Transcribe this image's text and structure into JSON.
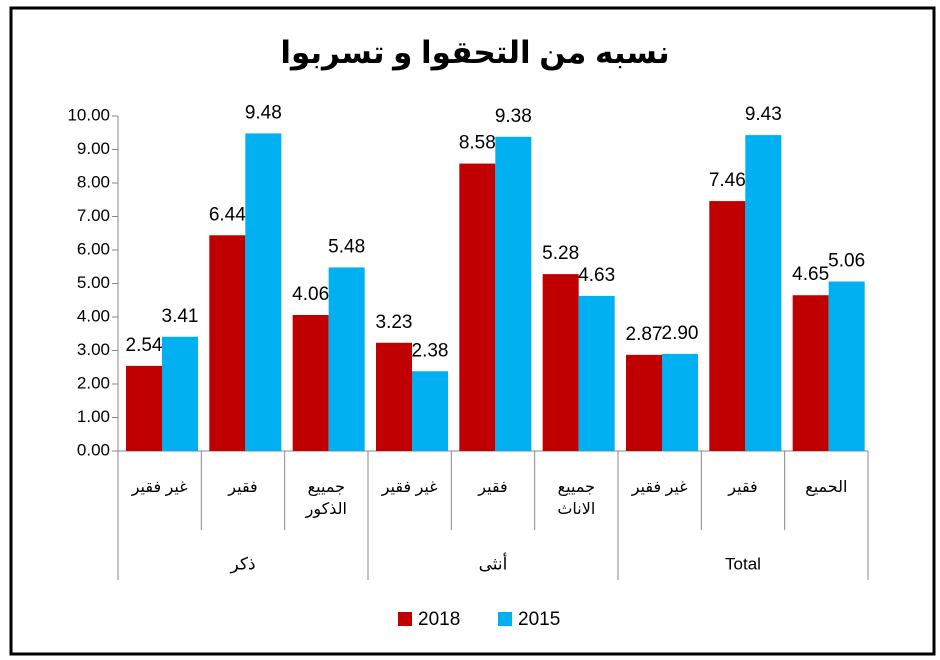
{
  "chart_data": {
    "type": "bar",
    "title": "نسبه من التحقوا و تسربوا",
    "categories": [
      "غير فقير",
      "فقير",
      "جمييع الذكور",
      "غير فقير",
      "فقير",
      "جمييع الاناث",
      "غير فقير",
      "فقير",
      "الحميع"
    ],
    "groups": [
      "ذكر",
      "أنثى",
      "Total"
    ],
    "series": [
      {
        "name": "2018",
        "color": "#c00000",
        "values": [
          2.54,
          6.44,
          4.06,
          3.23,
          8.58,
          5.28,
          2.87,
          7.46,
          4.65
        ],
        "value_labels": [
          "2.54",
          "6.44",
          "4.06",
          "3.23",
          "8.58",
          "5.28",
          "2.87",
          "7.46",
          "4.65"
        ]
      },
      {
        "name": "2015",
        "color": "#00b0f0",
        "values": [
          3.41,
          9.48,
          5.48,
          2.38,
          9.38,
          4.63,
          2.9,
          9.43,
          5.06
        ],
        "value_labels": [
          "3.41",
          "9.48",
          "5.48",
          "2.38",
          "9.38",
          "4.63",
          "2.90",
          "9.43",
          "5.06"
        ]
      }
    ],
    "ylim": [
      0,
      10
    ],
    "yticks": [
      {
        "value": 0,
        "label": "0.00"
      },
      {
        "value": 1,
        "label": "1.00"
      },
      {
        "value": 2,
        "label": "2.00"
      },
      {
        "value": 3,
        "label": "3.00"
      },
      {
        "value": 4,
        "label": "4.00"
      },
      {
        "value": 5,
        "label": "5.00"
      },
      {
        "value": 6,
        "label": "6.00"
      },
      {
        "value": 7,
        "label": "7.00"
      },
      {
        "value": 8,
        "label": "8.00"
      },
      {
        "value": 9,
        "label": "9.00"
      },
      {
        "value": 10,
        "label": "10.00"
      }
    ],
    "legend": "bottom"
  }
}
